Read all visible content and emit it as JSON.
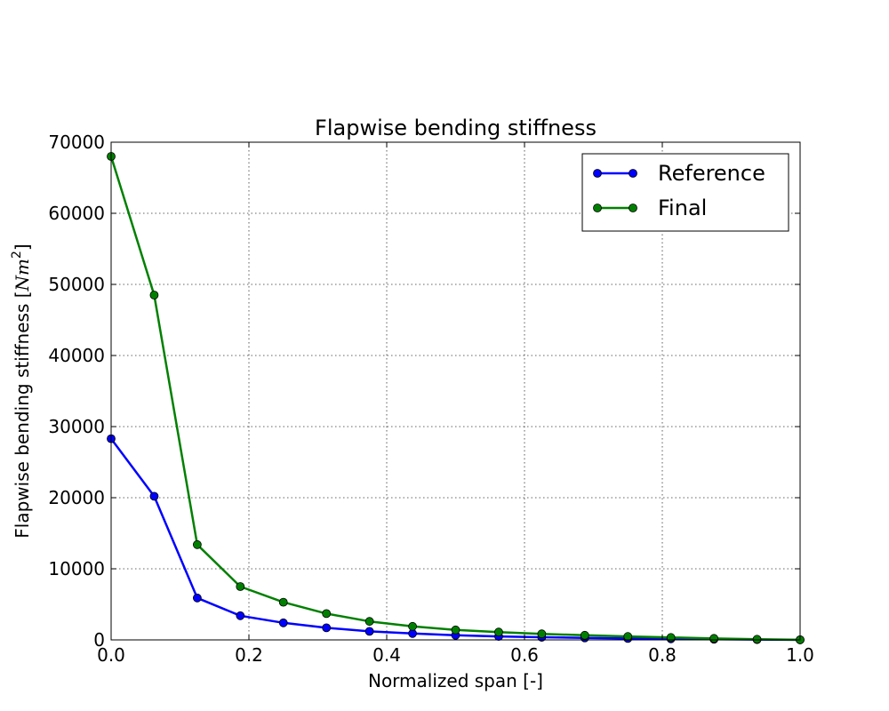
{
  "chart_data": {
    "type": "line",
    "title": "Flapwise bending stiffness",
    "xlabel": "Normalized span [-]",
    "ylabel_prefix": "Flapwise bending stiffness [",
    "ylabel_unit_base": "Nm",
    "ylabel_unit_exp": "2",
    "ylabel_suffix": "]",
    "xlim": [
      0.0,
      1.0
    ],
    "ylim": [
      0,
      70000
    ],
    "xticks": [
      0.0,
      0.2,
      0.4,
      0.6,
      0.8,
      1.0
    ],
    "xtick_labels": [
      "0.0",
      "0.2",
      "0.4",
      "0.6",
      "0.8",
      "1.0"
    ],
    "yticks": [
      0,
      10000,
      20000,
      30000,
      40000,
      50000,
      60000,
      70000
    ],
    "ytick_labels": [
      "0",
      "10000",
      "20000",
      "30000",
      "40000",
      "50000",
      "60000",
      "70000"
    ],
    "grid": true,
    "legend_position": "top-right",
    "x": [
      0.0,
      0.0625,
      0.125,
      0.1875,
      0.25,
      0.3125,
      0.375,
      0.4375,
      0.5,
      0.5625,
      0.625,
      0.6875,
      0.75,
      0.8125,
      0.875,
      0.9375,
      1.0
    ],
    "series": [
      {
        "name": "Reference",
        "color": "#0000ff",
        "values": [
          28300,
          20200,
          5900,
          3400,
          2400,
          1700,
          1200,
          900,
          650,
          480,
          370,
          280,
          200,
          150,
          90,
          40,
          10
        ]
      },
      {
        "name": "Final",
        "color": "#008000",
        "values": [
          68000,
          48500,
          13400,
          7500,
          5300,
          3700,
          2600,
          1900,
          1400,
          1100,
          850,
          650,
          480,
          340,
          210,
          90,
          20
        ]
      }
    ]
  }
}
